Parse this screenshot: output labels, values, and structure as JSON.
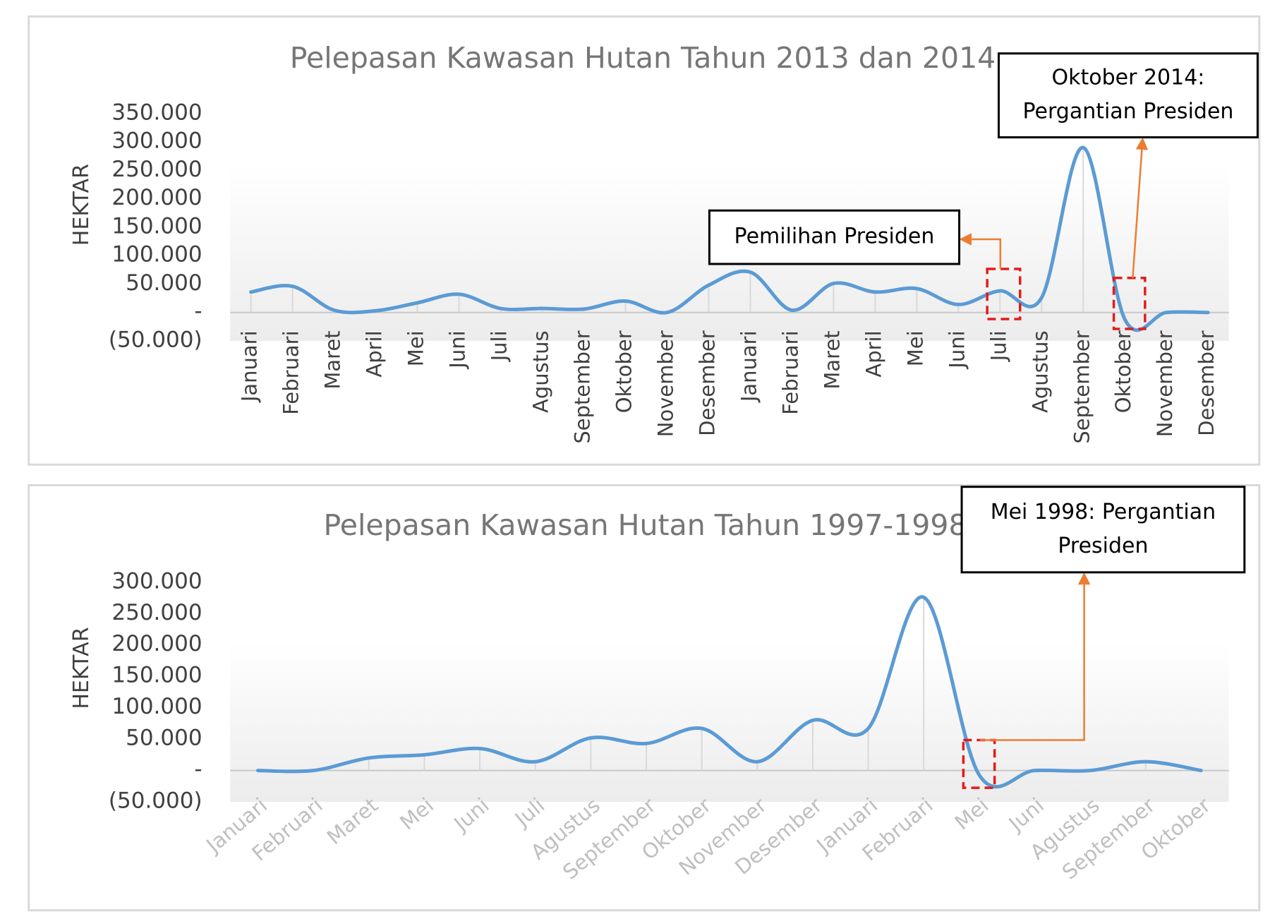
{
  "chart_data": [
    {
      "type": "line",
      "title": "Pelepasan Kawasan Hutan Tahun 2013 dan 2014",
      "y_label": "HEKTAR",
      "categories": [
        "Januari",
        "Februari",
        "Maret",
        "April",
        "Mei",
        "Juni",
        "Juli",
        "Agustus",
        "September",
        "Oktober",
        "November",
        "Desember",
        "Januari",
        "Februari",
        "Maret",
        "April",
        "Mei",
        "Juni",
        "Juli",
        "Agustus",
        "September",
        "Oktober",
        "November",
        "Desember"
      ],
      "series": [
        {
          "color": "#5b9bd5",
          "values": [
            36000,
            46000,
            4000,
            3000,
            17000,
            32000,
            7000,
            7000,
            6000,
            20000,
            0,
            48000,
            71000,
            4000,
            51000,
            36000,
            42000,
            14000,
            38000,
            26000,
            290000,
            -12000,
            0,
            0
          ]
        }
      ],
      "ylim": [
        -50000,
        350000
      ],
      "yticks": [
        {
          "value": -50000,
          "label": "(50.000)"
        },
        {
          "value": 0,
          "label": "-"
        },
        {
          "value": 50000,
          "label": "50.000"
        },
        {
          "value": 100000,
          "label": "100.000"
        },
        {
          "value": 150000,
          "label": "150.000"
        },
        {
          "value": 200000,
          "label": "200.000"
        },
        {
          "value": 250000,
          "label": "250.000"
        },
        {
          "value": 300000,
          "label": "300.000"
        },
        {
          "value": 350000,
          "label": "350.000"
        }
      ],
      "annotations": [
        {
          "lines": [
            "Pemilihan Presiden"
          ]
        },
        {
          "lines": [
            "Oktober 2014:",
            "Pergantian Presiden"
          ]
        }
      ]
    },
    {
      "type": "line",
      "title": "Pelepasan Kawasan Hutan Tahun 1997-1998",
      "y_label": "HEKTAR",
      "categories": [
        "Januari",
        "Februari",
        "Maret",
        "Mei",
        "Juni",
        "Juli",
        "Agustus",
        "September",
        "Oktober",
        "November",
        "Desember",
        "Januari",
        "Februari",
        "Mei",
        "Juni",
        "Agustus",
        "September",
        "Oktober"
      ],
      "series": [
        {
          "color": "#5b9bd5",
          "values": [
            0,
            0,
            20000,
            25000,
            35000,
            14000,
            52000,
            43000,
            67000,
            14000,
            80000,
            67000,
            276000,
            -7000,
            0,
            0,
            14000,
            0
          ]
        }
      ],
      "ylim": [
        -50000,
        300000
      ],
      "yticks": [
        {
          "value": -50000,
          "label": "(50.000)"
        },
        {
          "value": 0,
          "label": "-"
        },
        {
          "value": 50000,
          "label": "50.000"
        },
        {
          "value": 100000,
          "label": "100.000"
        },
        {
          "value": 150000,
          "label": "150.000"
        },
        {
          "value": 200000,
          "label": "200.000"
        },
        {
          "value": 250000,
          "label": "250.000"
        },
        {
          "value": 300000,
          "label": "300.000"
        }
      ],
      "annotations": [
        {
          "lines": [
            "Mei 1998: Pergantian",
            "Presiden"
          ]
        }
      ]
    }
  ]
}
